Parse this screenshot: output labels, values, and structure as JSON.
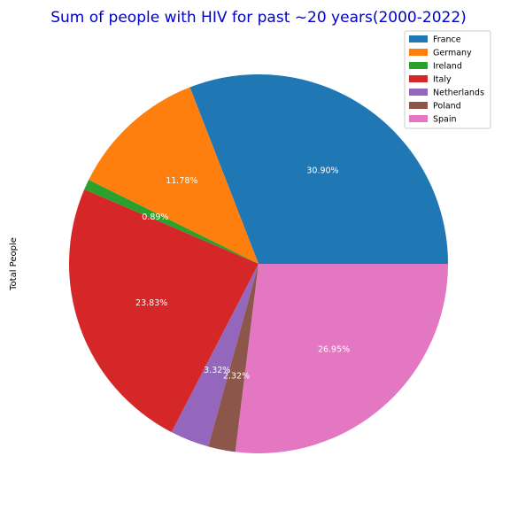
{
  "chart_data": {
    "type": "pie",
    "title": "Sum of people with HIV for past ~20 years(2000-2022)",
    "ylabel": "Total People",
    "legend_position": "top-right",
    "start_angle": "0 degrees (3 o'clock), counterclockwise",
    "slices": [
      {
        "label": "France",
        "percent": 30.9,
        "value_label": "30.90%",
        "color": "#1f77b4"
      },
      {
        "label": "Germany",
        "percent": 11.78,
        "value_label": "11.78%",
        "color": "#ff7f0e"
      },
      {
        "label": "Ireland",
        "percent": 0.89,
        "value_label": "0.89%",
        "color": "#2ca02c"
      },
      {
        "label": "Italy",
        "percent": 23.83,
        "value_label": "23.83%",
        "color": "#d62728"
      },
      {
        "label": "Netherlands",
        "percent": 3.32,
        "value_label": "3.32%",
        "color": "#9467bd"
      },
      {
        "label": "Poland",
        "percent": 2.32,
        "value_label": "2.32%",
        "color": "#8c564b"
      },
      {
        "label": "Spain",
        "percent": 26.95,
        "value_label": "26.95%",
        "color": "#e377c2"
      }
    ],
    "title_color": "#0000cc"
  }
}
